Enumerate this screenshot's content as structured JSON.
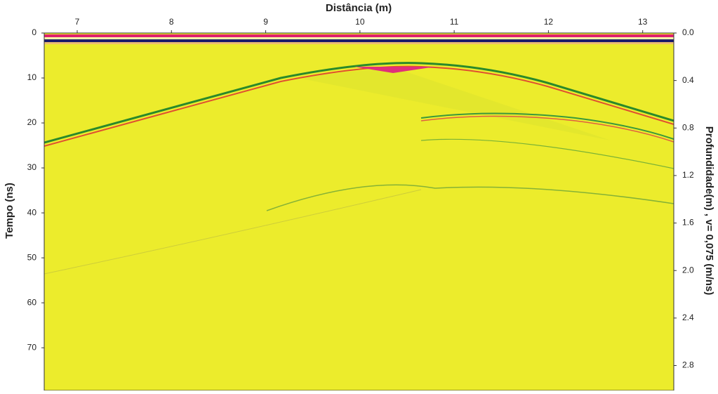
{
  "chart_data": {
    "type": "radargram",
    "xlabel": "Distância (m)",
    "ylabel": "Tempo (ns)",
    "y2label": "Profundidade(m) , v= 0,075 (m/ns)",
    "xlim": [
      6.65,
      13.33
    ],
    "xticks": [
      7,
      8,
      9,
      10,
      11,
      12,
      13
    ],
    "ylim": [
      0,
      79.5
    ],
    "y_inverted": true,
    "yticks": [
      0,
      10,
      20,
      30,
      40,
      50,
      60,
      70
    ],
    "y2lim": [
      0,
      3.01
    ],
    "y2ticks": [
      {
        "value": 0,
        "label": "0.0"
      },
      0.4,
      0.8,
      1.2,
      1.6,
      {
        "value": 2,
        "label": "2.0"
      },
      2.4,
      2.8
    ]
  }
}
